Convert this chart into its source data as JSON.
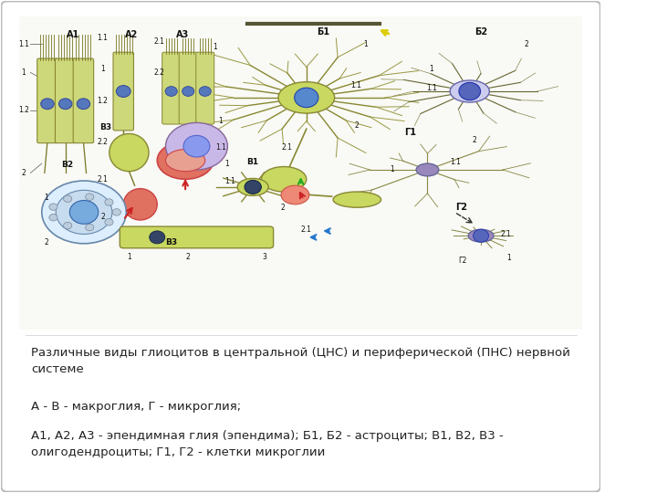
{
  "figure_bg": "#ffffff",
  "panel_bg": "#ffffff",
  "border_color": "#bbbbbb",
  "title_text": "Различные виды глиоцитов в центральной (ЦНС) и периферической (ПНС) нервной\nсистеме",
  "line2_text": "А - В - макроглия, Г - микроглия;",
  "line3_text": "А1, А2, А3 - эпендимная глия (эпендима); Б1, Б2 - астроциты; В1, В2, В3 -\nолигодендроциты; Г1, Г2 - клетки микроглии",
  "font_size_caption": 9.5,
  "text_color": "#222222"
}
